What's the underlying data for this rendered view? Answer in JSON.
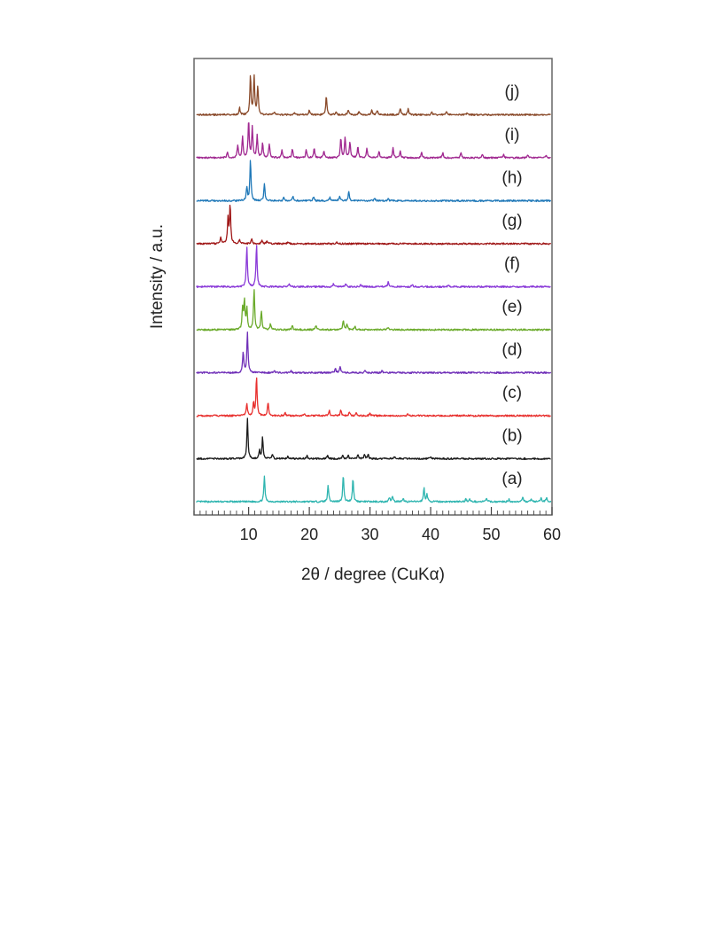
{
  "chart_data": {
    "type": "line",
    "xlabel": "2θ / degree (CuKα)",
    "ylabel": "Intensity / a.u.",
    "xlim": [
      1,
      60
    ],
    "x_ticks": [
      10,
      20,
      30,
      40,
      50,
      60
    ],
    "x_minor_step": 1,
    "y_ticks_shown": false,
    "grid": false,
    "legend": "none",
    "series": [
      {
        "name": "(a)",
        "color": "#2fb5b0",
        "baseline": 0,
        "peaks": [
          [
            12.6,
            0.55
          ],
          [
            23.1,
            0.37
          ],
          [
            25.6,
            0.58
          ],
          [
            27.2,
            0.51
          ],
          [
            33.2,
            0.1
          ],
          [
            33.7,
            0.13
          ],
          [
            35.5,
            0.06
          ],
          [
            38.9,
            0.3
          ],
          [
            39.4,
            0.16
          ],
          [
            45.8,
            0.06
          ],
          [
            46.4,
            0.06
          ],
          [
            49.2,
            0.08
          ],
          [
            52.9,
            0.05
          ],
          [
            55.2,
            0.09
          ],
          [
            56.6,
            0.06
          ],
          [
            58.2,
            0.08
          ],
          [
            59.1,
            0.1
          ]
        ]
      },
      {
        "name": "(b)",
        "color": "#1a1a1a",
        "baseline": 1,
        "peaks": [
          [
            9.8,
            0.88
          ],
          [
            11.8,
            0.18
          ],
          [
            12.3,
            0.46
          ],
          [
            13.9,
            0.1
          ],
          [
            16.5,
            0.05
          ],
          [
            19.6,
            0.07
          ],
          [
            23.0,
            0.07
          ],
          [
            25.5,
            0.08
          ],
          [
            26.4,
            0.07
          ],
          [
            28.0,
            0.09
          ],
          [
            29.1,
            0.1
          ],
          [
            29.7,
            0.08
          ],
          [
            34.1,
            0.05
          ],
          [
            40.0,
            0.05
          ]
        ]
      },
      {
        "name": "(c)",
        "color": "#e8302e",
        "baseline": 2,
        "peaks": [
          [
            9.7,
            0.26
          ],
          [
            10.8,
            0.28
          ],
          [
            11.3,
            0.85
          ],
          [
            13.2,
            0.3
          ],
          [
            16.0,
            0.06
          ],
          [
            19.2,
            0.05
          ],
          [
            23.3,
            0.12
          ],
          [
            25.2,
            0.12
          ],
          [
            26.6,
            0.09
          ],
          [
            27.7,
            0.07
          ],
          [
            30.0,
            0.05
          ],
          [
            36.2,
            0.05
          ]
        ]
      },
      {
        "name": "(d)",
        "color": "#7030b8",
        "baseline": 3,
        "peaks": [
          [
            9.1,
            0.45
          ],
          [
            9.8,
            0.88
          ],
          [
            14.2,
            0.05
          ],
          [
            17.0,
            0.05
          ],
          [
            24.3,
            0.09
          ],
          [
            25.1,
            0.14
          ],
          [
            29.2,
            0.05
          ],
          [
            32.0,
            0.04
          ]
        ]
      },
      {
        "name": "(e)",
        "color": "#6aaa2a",
        "baseline": 4,
        "peaks": [
          [
            9.0,
            0.45
          ],
          [
            9.3,
            0.62
          ],
          [
            9.7,
            0.48
          ],
          [
            10.9,
            0.9
          ],
          [
            12.1,
            0.42
          ],
          [
            13.6,
            0.13
          ],
          [
            17.2,
            0.08
          ],
          [
            21.1,
            0.1
          ],
          [
            25.6,
            0.2
          ],
          [
            26.2,
            0.13
          ],
          [
            27.5,
            0.08
          ],
          [
            33.0,
            0.06
          ]
        ]
      },
      {
        "name": "(f)",
        "color": "#8a3ad8",
        "baseline": 5,
        "peaks": [
          [
            9.7,
            0.88
          ],
          [
            11.3,
            0.92
          ],
          [
            16.7,
            0.05
          ],
          [
            24.0,
            0.07
          ],
          [
            26.0,
            0.08
          ],
          [
            28.5,
            0.05
          ],
          [
            33.0,
            0.1
          ],
          [
            37.0,
            0.05
          ],
          [
            43.0,
            0.04
          ]
        ]
      },
      {
        "name": "(g)",
        "color": "#a01818",
        "baseline": 6,
        "peaks": [
          [
            5.4,
            0.15
          ],
          [
            6.6,
            0.55
          ],
          [
            6.95,
            0.85
          ],
          [
            8.5,
            0.1
          ],
          [
            10.5,
            0.12
          ],
          [
            12.2,
            0.08
          ],
          [
            13.0,
            0.06
          ],
          [
            16.5,
            0.04
          ],
          [
            24.5,
            0.04
          ]
        ]
      },
      {
        "name": "(h)",
        "color": "#1f78b8",
        "baseline": 7,
        "peaks": [
          [
            9.7,
            0.3
          ],
          [
            10.3,
            0.88
          ],
          [
            12.6,
            0.38
          ],
          [
            15.8,
            0.07
          ],
          [
            17.3,
            0.11
          ],
          [
            20.7,
            0.09
          ],
          [
            23.4,
            0.08
          ],
          [
            25.0,
            0.1
          ],
          [
            26.5,
            0.2
          ],
          [
            30.8,
            0.06
          ],
          [
            33.0,
            0.05
          ]
        ]
      },
      {
        "name": "(i)",
        "color": "#a02890",
        "baseline": 8,
        "peaks": [
          [
            6.5,
            0.12
          ],
          [
            8.2,
            0.28
          ],
          [
            9.0,
            0.45
          ],
          [
            10.0,
            0.82
          ],
          [
            10.6,
            0.65
          ],
          [
            11.4,
            0.48
          ],
          [
            12.3,
            0.33
          ],
          [
            13.4,
            0.3
          ],
          [
            15.5,
            0.16
          ],
          [
            17.2,
            0.2
          ],
          [
            19.5,
            0.18
          ],
          [
            20.8,
            0.22
          ],
          [
            22.4,
            0.16
          ],
          [
            25.2,
            0.42
          ],
          [
            25.9,
            0.45
          ],
          [
            26.7,
            0.35
          ],
          [
            28.0,
            0.24
          ],
          [
            29.5,
            0.2
          ],
          [
            31.5,
            0.14
          ],
          [
            33.8,
            0.22
          ],
          [
            35.0,
            0.15
          ],
          [
            38.5,
            0.12
          ],
          [
            42.0,
            0.12
          ],
          [
            45.0,
            0.1
          ],
          [
            48.5,
            0.08
          ],
          [
            52.0,
            0.07
          ],
          [
            56.0,
            0.07
          ],
          [
            59.0,
            0.06
          ]
        ]
      },
      {
        "name": "(j)",
        "color": "#8a4a2a",
        "baseline": 9,
        "peaks": [
          [
            8.5,
            0.15
          ],
          [
            10.3,
            0.85
          ],
          [
            10.9,
            0.85
          ],
          [
            11.5,
            0.62
          ],
          [
            14.2,
            0.06
          ],
          [
            17.5,
            0.05
          ],
          [
            20.0,
            0.1
          ],
          [
            22.8,
            0.42
          ],
          [
            24.4,
            0.07
          ],
          [
            26.4,
            0.12
          ],
          [
            28.2,
            0.08
          ],
          [
            30.3,
            0.1
          ],
          [
            31.2,
            0.1
          ],
          [
            35.0,
            0.14
          ],
          [
            36.3,
            0.13
          ],
          [
            40.2,
            0.06
          ],
          [
            42.6,
            0.08
          ],
          [
            46.0,
            0.05
          ]
        ]
      }
    ]
  }
}
